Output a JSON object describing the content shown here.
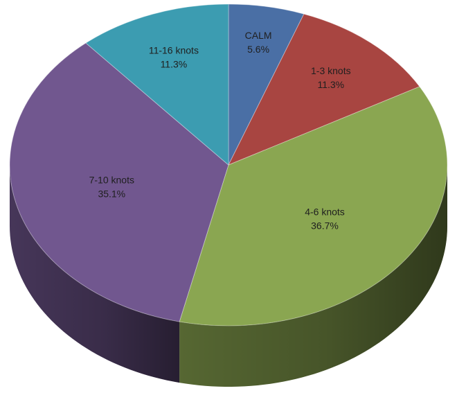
{
  "chart_data": {
    "type": "pie",
    "style": "3d",
    "labels": [
      "CALM",
      "1-3 knots",
      "4-6 knots",
      "7-10 knots",
      "11-16 knots"
    ],
    "values": [
      5.6,
      11.3,
      36.7,
      35.1,
      11.3
    ],
    "value_labels": [
      "5.6%",
      "11.3%",
      "36.7%",
      "35.1%",
      "11.3%"
    ],
    "colors": [
      "#4a6fa5",
      "#a84541",
      "#8aa651",
      "#71578f",
      "#3c9cb1"
    ],
    "legend": "none",
    "data_labels": "on slices"
  }
}
